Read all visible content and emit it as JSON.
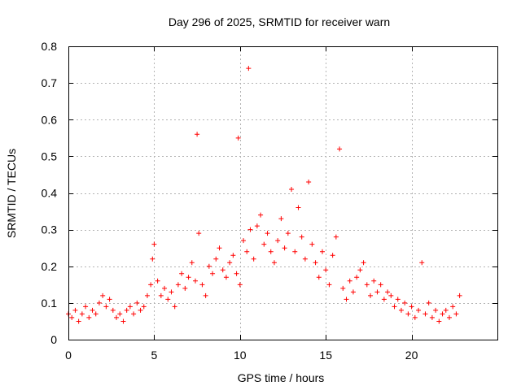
{
  "chart_data": {
    "type": "scatter",
    "title": "Day 296 of 2025, SRMTID for receiver warn",
    "xlabel": "GPS time / hours",
    "ylabel": "SRMTID / TECUs",
    "xlim": [
      0,
      25
    ],
    "ylim": [
      0,
      0.8
    ],
    "xticks": [
      0,
      5,
      10,
      15,
      20
    ],
    "xtick_labels": [
      "0",
      "5",
      "10",
      "15",
      "20"
    ],
    "yticks": [
      0,
      0.1,
      0.2,
      0.3,
      0.4,
      0.5,
      0.6,
      0.7,
      0.8
    ],
    "ytick_labels": [
      "0",
      "0.1",
      "0.2",
      "0.3",
      "0.4",
      "0.5",
      "0.6",
      "0.7",
      "0.8"
    ],
    "grid": true,
    "marker": "plus",
    "color": "#ff0000",
    "series": [
      {
        "name": "SRMTID",
        "x": [
          0.0,
          0.2,
          0.4,
          0.6,
          0.8,
          1.0,
          1.2,
          1.4,
          1.6,
          1.8,
          2.0,
          2.2,
          2.4,
          2.6,
          2.8,
          3.0,
          3.2,
          3.4,
          3.6,
          3.8,
          4.0,
          4.2,
          4.4,
          4.6,
          4.8,
          4.9,
          5.0,
          5.2,
          5.4,
          5.6,
          5.8,
          6.0,
          6.2,
          6.4,
          6.6,
          6.8,
          7.0,
          7.2,
          7.4,
          7.5,
          7.6,
          7.8,
          8.0,
          8.2,
          8.4,
          8.6,
          8.8,
          9.0,
          9.2,
          9.4,
          9.6,
          9.8,
          9.9,
          10.0,
          10.2,
          10.4,
          10.5,
          10.6,
          10.8,
          11.0,
          11.2,
          11.4,
          11.6,
          11.8,
          12.0,
          12.2,
          12.4,
          12.6,
          12.8,
          13.0,
          13.2,
          13.4,
          13.6,
          13.8,
          14.0,
          14.2,
          14.4,
          14.6,
          14.8,
          15.0,
          15.2,
          15.4,
          15.6,
          15.8,
          16.0,
          16.2,
          16.4,
          16.6,
          16.8,
          17.0,
          17.2,
          17.4,
          17.6,
          17.8,
          18.0,
          18.2,
          18.4,
          18.6,
          18.8,
          19.0,
          19.2,
          19.4,
          19.6,
          19.8,
          20.0,
          20.2,
          20.4,
          20.6,
          20.8,
          21.0,
          21.2,
          21.4,
          21.6,
          21.8,
          22.0,
          22.2,
          22.4,
          22.6,
          22.8
        ],
        "values": [
          0.07,
          0.06,
          0.08,
          0.05,
          0.07,
          0.09,
          0.06,
          0.08,
          0.07,
          0.1,
          0.12,
          0.09,
          0.11,
          0.08,
          0.06,
          0.07,
          0.05,
          0.08,
          0.09,
          0.07,
          0.1,
          0.08,
          0.09,
          0.12,
          0.15,
          0.22,
          0.26,
          0.16,
          0.12,
          0.14,
          0.11,
          0.13,
          0.09,
          0.15,
          0.18,
          0.14,
          0.17,
          0.21,
          0.16,
          0.56,
          0.29,
          0.15,
          0.12,
          0.2,
          0.18,
          0.22,
          0.25,
          0.19,
          0.17,
          0.21,
          0.23,
          0.18,
          0.55,
          0.15,
          0.27,
          0.24,
          0.74,
          0.3,
          0.22,
          0.31,
          0.34,
          0.26,
          0.29,
          0.24,
          0.21,
          0.27,
          0.33,
          0.25,
          0.29,
          0.41,
          0.24,
          0.36,
          0.28,
          0.22,
          0.43,
          0.26,
          0.21,
          0.17,
          0.24,
          0.19,
          0.15,
          0.23,
          0.28,
          0.52,
          0.14,
          0.11,
          0.16,
          0.13,
          0.17,
          0.19,
          0.21,
          0.15,
          0.12,
          0.16,
          0.13,
          0.15,
          0.11,
          0.13,
          0.12,
          0.09,
          0.11,
          0.08,
          0.1,
          0.07,
          0.09,
          0.06,
          0.08,
          0.21,
          0.07,
          0.1,
          0.06,
          0.08,
          0.05,
          0.07,
          0.08,
          0.06,
          0.09,
          0.07,
          0.12
        ]
      }
    ]
  }
}
